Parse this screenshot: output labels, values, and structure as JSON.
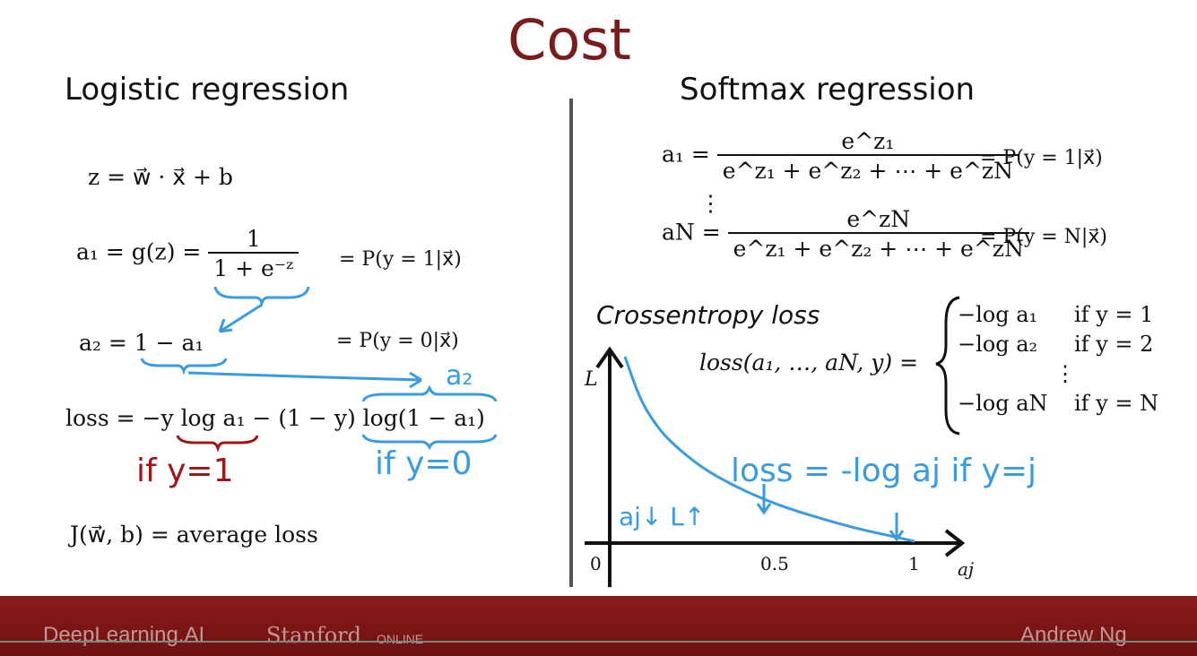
{
  "title": "Cost",
  "left": {
    "heading": "Logistic regression",
    "eq_z": "z = w⃗ · x⃗ + b",
    "eq_a1_lhs": "a₁ = g(z) =",
    "eq_a1_num": "1",
    "eq_a1_den": "1 + e⁻ᶻ",
    "eq_a1_rhs": "= P(y = 1|x⃗)",
    "eq_a2": "a₂ = 1 − a₁",
    "eq_a2_rhs": "= P(y = 0|x⃗)",
    "eq_loss": "loss = −y log a₁ − (1 − y) log(1 − a₁)",
    "eq_J": "J(w⃗, b) = average loss",
    "note_a2": "a₂",
    "note_y1": "if y=1",
    "note_y0": "if y=0"
  },
  "right": {
    "heading": "Softmax regression",
    "a1_lhs": "a₁ =",
    "a1_num": "e^z₁",
    "a1_den": "e^z₁ + e^z₂ + ⋯ + e^zN",
    "a1_rhs": "= P(y = 1|x⃗)",
    "vdots": "⋮",
    "aN_lhs": "aN =",
    "aN_num": "e^zN",
    "aN_den": "e^z₁ + e^z₂ + ⋯ + e^zN",
    "aN_rhs": "= P(y = N|x⃗)",
    "ce_heading": "Crossentropy loss",
    "loss_lhs": "loss(a₁, …, aN, y) =",
    "cases": [
      {
        "expr": "−log a₁",
        "cond": "if y = 1"
      },
      {
        "expr": "−log a₂",
        "cond": "if y = 2"
      },
      {
        "expr": "⋮",
        "cond": ""
      },
      {
        "expr": "−log aN",
        "cond": "if y = N"
      }
    ],
    "note_loss": "loss = -log aj if y=j",
    "note_arrows": "aj↓ L↑"
  },
  "chart_data": {
    "type": "line",
    "xlabel": "aj",
    "ylabel": "L",
    "x_ticks": [
      "0",
      "0.5",
      "1"
    ],
    "xlim": [
      0,
      1
    ],
    "series": [
      {
        "x": [
          0.05,
          0.1,
          0.15,
          0.2,
          0.3,
          0.4,
          0.5,
          0.6,
          0.7,
          0.8,
          0.9,
          1.0
        ],
        "values": [
          3.0,
          2.3,
          1.9,
          1.61,
          1.2,
          0.92,
          0.69,
          0.51,
          0.36,
          0.22,
          0.11,
          0.0
        ]
      }
    ]
  },
  "footer": {
    "brand1": "DeepLearning.AI",
    "brand2": "Stanford",
    "brand2_sub": "ONLINE",
    "author": "Andrew Ng"
  }
}
